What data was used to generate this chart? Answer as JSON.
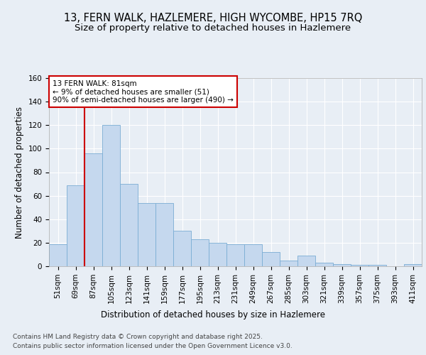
{
  "title_line1": "13, FERN WALK, HAZLEMERE, HIGH WYCOMBE, HP15 7RQ",
  "title_line2": "Size of property relative to detached houses in Hazlemere",
  "xlabel": "Distribution of detached houses by size in Hazlemere",
  "ylabel": "Number of detached properties",
  "categories": [
    "51sqm",
    "69sqm",
    "87sqm",
    "105sqm",
    "123sqm",
    "141sqm",
    "159sqm",
    "177sqm",
    "195sqm",
    "213sqm",
    "231sqm",
    "249sqm",
    "267sqm",
    "285sqm",
    "303sqm",
    "321sqm",
    "339sqm",
    "357sqm",
    "375sqm",
    "393sqm",
    "411sqm"
  ],
  "values": [
    19,
    69,
    96,
    120,
    70,
    54,
    54,
    30,
    23,
    20,
    19,
    19,
    12,
    5,
    9,
    3,
    2,
    1,
    1,
    0,
    2
  ],
  "bar_color": "#c5d8ee",
  "bar_edge_color": "#7aadd4",
  "vline_x": 1.5,
  "vline_color": "#cc0000",
  "annotation_text": "13 FERN WALK: 81sqm\n← 9% of detached houses are smaller (51)\n90% of semi-detached houses are larger (490) →",
  "annotation_box_facecolor": "white",
  "annotation_box_edgecolor": "#cc0000",
  "ylim": [
    0,
    160
  ],
  "yticks": [
    0,
    20,
    40,
    60,
    80,
    100,
    120,
    140,
    160
  ],
  "background_color": "#e8eef5",
  "plot_bg_color": "#e8eef5",
  "grid_color": "white",
  "footer_line1": "Contains HM Land Registry data © Crown copyright and database right 2025.",
  "footer_line2": "Contains public sector information licensed under the Open Government Licence v3.0.",
  "title_fontsize": 10.5,
  "subtitle_fontsize": 9.5,
  "axis_label_fontsize": 8.5,
  "tick_fontsize": 7.5,
  "annotation_fontsize": 7.5,
  "footer_fontsize": 6.5
}
